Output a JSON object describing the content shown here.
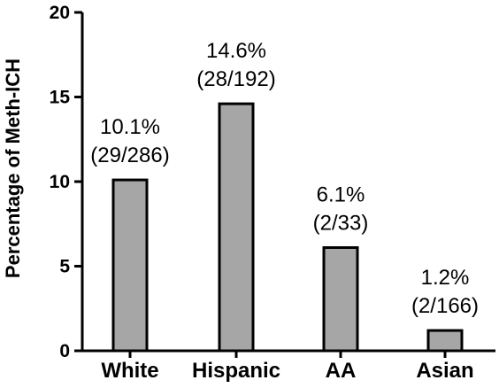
{
  "chart_data": {
    "type": "bar",
    "title": "",
    "xlabel": "",
    "ylabel": "Percentage of Meth-ICH",
    "categories": [
      "White",
      "Hispanic",
      "AA",
      "Asian"
    ],
    "values": [
      10.1,
      14.6,
      6.1,
      1.2
    ],
    "data_labels": [
      {
        "percent": "10.1%",
        "ratio": "(29/286)"
      },
      {
        "percent": "14.6%",
        "ratio": "(28/192)"
      },
      {
        "percent": "6.1%",
        "ratio": "(2/33)"
      },
      {
        "percent": "1.2%",
        "ratio": "(2/166)"
      }
    ],
    "ylim": [
      0,
      20
    ],
    "yticks": [
      "0",
      "5",
      "10",
      "15",
      "20"
    ],
    "grid": false,
    "legend": "none",
    "bar_color": "#a6a6a6",
    "axis_color": "#000000"
  }
}
